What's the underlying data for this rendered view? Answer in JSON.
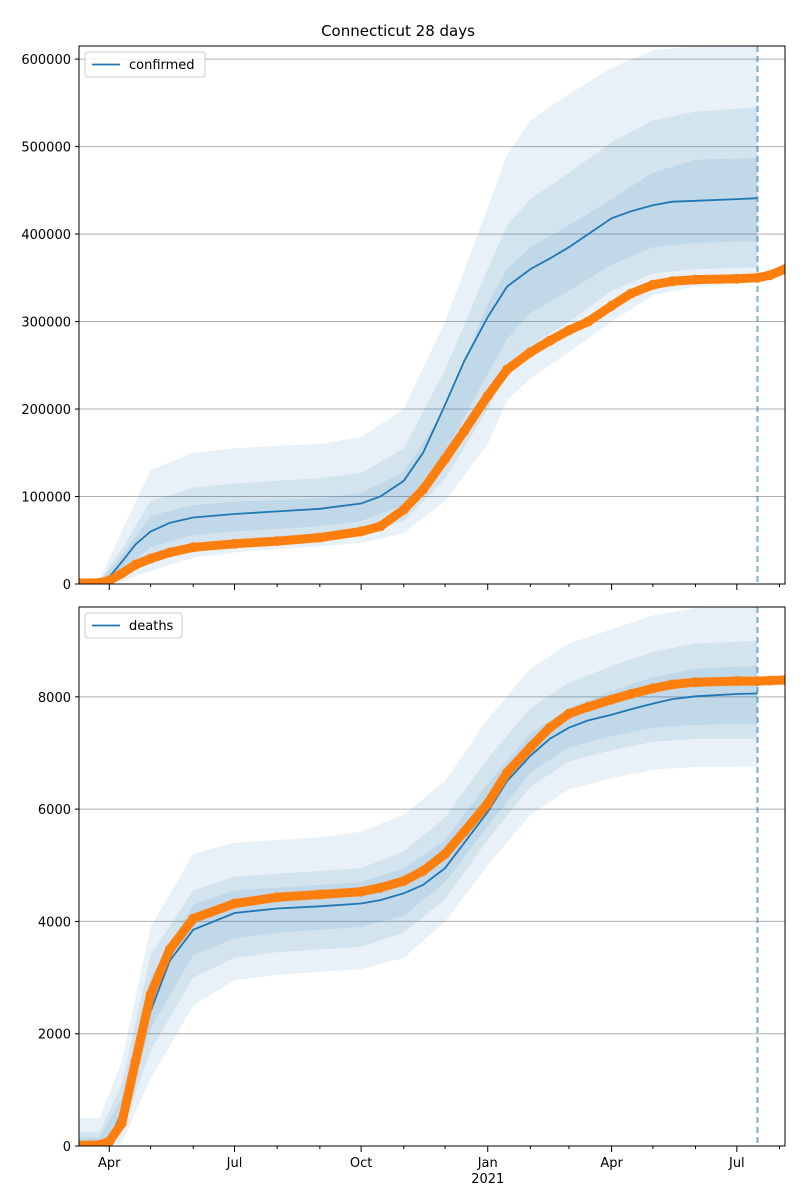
{
  "figure": {
    "title": "Connecticut 28 days"
  },
  "colors": {
    "model": "#1f77b4",
    "observed": "#ff7f0e",
    "band": "#1f77b4",
    "grid": "#b0b0b0"
  },
  "x_ticks": {
    "major": [
      {
        "date": "2020-04-01",
        "label": "Apr"
      },
      {
        "date": "2020-07-01",
        "label": "Jul"
      },
      {
        "date": "2020-10-01",
        "label": "Oct"
      },
      {
        "date": "2021-01-01",
        "label": "Jan"
      },
      {
        "date": "2021-04-01",
        "label": "Apr"
      },
      {
        "date": "2021-07-01",
        "label": "Jul"
      }
    ],
    "year_label": {
      "date": "2021-01-01",
      "label": "2021"
    }
  },
  "chart_data": [
    {
      "type": "line",
      "panel": "confirmed",
      "title": "Connecticut 28 days",
      "xlabel": "",
      "ylabel": "",
      "xlim": [
        "2020-03-10",
        "2021-08-05"
      ],
      "ylim": [
        0,
        615000
      ],
      "yticks": [
        0,
        100000,
        200000,
        300000,
        400000,
        500000,
        600000
      ],
      "grid": "y-major",
      "legend": {
        "placement": "top-left",
        "entries": [
          "confirmed"
        ]
      },
      "forecast_marker_date": "2021-07-16",
      "series": [
        {
          "name": "confirmed",
          "style": "line",
          "x": [
            "2020-03-10",
            "2020-03-25",
            "2020-04-01",
            "2020-04-10",
            "2020-04-20",
            "2020-05-01",
            "2020-05-15",
            "2020-06-01",
            "2020-07-01",
            "2020-08-01",
            "2020-09-01",
            "2020-10-01",
            "2020-10-15",
            "2020-11-01",
            "2020-11-15",
            "2020-12-01",
            "2020-12-15",
            "2021-01-01",
            "2021-01-15",
            "2021-02-01",
            "2021-02-15",
            "2021-03-01",
            "2021-03-15",
            "2021-04-01",
            "2021-04-15",
            "2021-05-01",
            "2021-05-15",
            "2021-06-01",
            "2021-07-01",
            "2021-07-16"
          ],
          "y": [
            1000,
            1500,
            8000,
            25000,
            45000,
            60000,
            70000,
            76000,
            80000,
            83000,
            86000,
            92000,
            100000,
            118000,
            150000,
            205000,
            255000,
            305000,
            340000,
            360000,
            372000,
            385000,
            400000,
            418000,
            426000,
            433000,
            437000,
            438000,
            440000,
            441000
          ]
        },
        {
          "name": "",
          "style": "markers",
          "x": [
            "2020-03-10",
            "2020-03-25",
            "2020-04-01",
            "2020-04-10",
            "2020-04-20",
            "2020-05-01",
            "2020-05-15",
            "2020-06-01",
            "2020-07-01",
            "2020-08-01",
            "2020-09-01",
            "2020-10-01",
            "2020-10-15",
            "2020-11-01",
            "2020-11-15",
            "2020-12-01",
            "2020-12-15",
            "2021-01-01",
            "2021-01-15",
            "2021-02-01",
            "2021-02-15",
            "2021-03-01",
            "2021-03-15",
            "2021-04-01",
            "2021-04-15",
            "2021-05-01",
            "2021-05-15",
            "2021-06-01",
            "2021-07-01",
            "2021-07-16",
            "2021-07-25",
            "2021-08-05"
          ],
          "y": [
            1000,
            1500,
            4000,
            12000,
            22000,
            29000,
            36000,
            42000,
            46000,
            49000,
            53000,
            60000,
            66000,
            85000,
            108000,
            143000,
            175000,
            215000,
            245000,
            265000,
            278000,
            290000,
            300000,
            318000,
            332000,
            342000,
            346000,
            348000,
            349000,
            350000,
            353000,
            360000
          ]
        }
      ],
      "bands": [
        {
          "level": "outer",
          "x": [
            "2020-03-10",
            "2020-03-25",
            "2020-04-10",
            "2020-05-01",
            "2020-06-01",
            "2020-07-01",
            "2020-08-01",
            "2020-09-01",
            "2020-10-01",
            "2020-11-01",
            "2020-12-01",
            "2021-01-01",
            "2021-01-15",
            "2021-02-01",
            "2021-03-01",
            "2021-04-01",
            "2021-05-01",
            "2021-06-01",
            "2021-07-16"
          ],
          "lower": [
            0,
            0,
            3000,
            15000,
            30000,
            36000,
            40000,
            43000,
            47000,
            58000,
            95000,
            160000,
            210000,
            235000,
            265000,
            300000,
            330000,
            340000,
            345000
          ],
          "upper": [
            3000,
            5000,
            60000,
            130000,
            150000,
            155000,
            158000,
            160000,
            168000,
            200000,
            300000,
            430000,
            490000,
            530000,
            560000,
            590000,
            610000,
            615000,
            615000
          ]
        },
        {
          "level": "middle",
          "x": [
            "2020-03-10",
            "2020-03-25",
            "2020-04-10",
            "2020-05-01",
            "2020-06-01",
            "2020-07-01",
            "2020-08-01",
            "2020-09-01",
            "2020-10-01",
            "2020-11-01",
            "2020-12-01",
            "2021-01-01",
            "2021-01-15",
            "2021-02-01",
            "2021-03-01",
            "2021-04-01",
            "2021-05-01",
            "2021-06-01",
            "2021-07-16"
          ],
          "lower": [
            0,
            0,
            8000,
            28000,
            42000,
            47000,
            50000,
            53000,
            58000,
            72000,
            120000,
            200000,
            245000,
            272000,
            300000,
            335000,
            355000,
            360000,
            362000
          ],
          "upper": [
            2000,
            3500,
            40000,
            95000,
            110000,
            115000,
            118000,
            121000,
            127000,
            155000,
            245000,
            360000,
            410000,
            440000,
            470000,
            505000,
            530000,
            540000,
            545000
          ]
        },
        {
          "level": "inner",
          "x": [
            "2020-03-10",
            "2020-03-25",
            "2020-04-10",
            "2020-05-01",
            "2020-06-01",
            "2020-07-01",
            "2020-08-01",
            "2020-09-01",
            "2020-10-01",
            "2020-11-01",
            "2020-12-01",
            "2021-01-01",
            "2021-01-15",
            "2021-02-01",
            "2021-03-01",
            "2021-04-01",
            "2021-05-01",
            "2021-06-01",
            "2021-07-16"
          ],
          "lower": [
            0,
            0,
            15000,
            42000,
            56000,
            60000,
            63000,
            66000,
            72000,
            90000,
            150000,
            240000,
            280000,
            310000,
            335000,
            365000,
            385000,
            390000,
            392000
          ],
          "upper": [
            1500,
            2500,
            32000,
            78000,
            90000,
            94000,
            96000,
            98000,
            104000,
            128000,
            200000,
            320000,
            360000,
            385000,
            410000,
            440000,
            470000,
            485000,
            487000
          ]
        }
      ]
    },
    {
      "type": "line",
      "panel": "deaths",
      "xlabel": "",
      "ylabel": "",
      "xlim": [
        "2020-03-10",
        "2021-08-05"
      ],
      "ylim": [
        0,
        9600
      ],
      "yticks": [
        0,
        2000,
        4000,
        6000,
        8000
      ],
      "grid": "y-major",
      "legend": {
        "placement": "top-left",
        "entries": [
          "deaths"
        ]
      },
      "forecast_marker_date": "2021-07-16",
      "series": [
        {
          "name": "deaths",
          "style": "line",
          "x": [
            "2020-03-10",
            "2020-03-25",
            "2020-04-01",
            "2020-04-10",
            "2020-04-20",
            "2020-05-01",
            "2020-05-15",
            "2020-06-01",
            "2020-07-01",
            "2020-08-01",
            "2020-09-01",
            "2020-10-01",
            "2020-10-15",
            "2020-11-01",
            "2020-11-15",
            "2020-12-01",
            "2020-12-15",
            "2021-01-01",
            "2021-01-15",
            "2021-02-01",
            "2021-02-15",
            "2021-03-01",
            "2021-03-15",
            "2021-04-01",
            "2021-04-15",
            "2021-05-01",
            "2021-05-15",
            "2021-06-01",
            "2021-07-01",
            "2021-07-16"
          ],
          "y": [
            10,
            20,
            100,
            600,
            1400,
            2400,
            3300,
            3850,
            4150,
            4230,
            4270,
            4320,
            4380,
            4500,
            4650,
            4950,
            5400,
            5950,
            6500,
            6950,
            7250,
            7450,
            7580,
            7680,
            7780,
            7880,
            7960,
            8010,
            8050,
            8060
          ]
        },
        {
          "name": "",
          "style": "markers",
          "x": [
            "2020-03-10",
            "2020-03-25",
            "2020-04-01",
            "2020-04-10",
            "2020-04-20",
            "2020-05-01",
            "2020-05-15",
            "2020-06-01",
            "2020-07-01",
            "2020-08-01",
            "2020-09-01",
            "2020-10-01",
            "2020-10-15",
            "2020-11-01",
            "2020-11-15",
            "2020-12-01",
            "2020-12-15",
            "2021-01-01",
            "2021-01-15",
            "2021-02-01",
            "2021-02-15",
            "2021-03-01",
            "2021-03-15",
            "2021-04-01",
            "2021-04-15",
            "2021-05-01",
            "2021-05-15",
            "2021-06-01",
            "2021-07-01",
            "2021-07-16",
            "2021-07-25",
            "2021-08-05"
          ],
          "y": [
            10,
            20,
            80,
            400,
            1500,
            2700,
            3500,
            4050,
            4320,
            4430,
            4480,
            4530,
            4600,
            4720,
            4900,
            5200,
            5600,
            6100,
            6650,
            7100,
            7450,
            7700,
            7820,
            7950,
            8050,
            8150,
            8220,
            8260,
            8280,
            8280,
            8290,
            8300
          ]
        }
      ],
      "bands": [
        {
          "level": "outer",
          "x": [
            "2020-03-10",
            "2020-03-25",
            "2020-04-10",
            "2020-05-01",
            "2020-06-01",
            "2020-07-01",
            "2020-08-01",
            "2020-09-01",
            "2020-10-01",
            "2020-11-01",
            "2020-12-01",
            "2021-01-01",
            "2021-02-01",
            "2021-03-01",
            "2021-04-01",
            "2021-05-01",
            "2021-06-01",
            "2021-07-16"
          ],
          "lower": [
            0,
            0,
            50,
            1200,
            2500,
            2950,
            3050,
            3100,
            3150,
            3350,
            4000,
            5000,
            5900,
            6350,
            6550,
            6700,
            6750,
            6760
          ],
          "upper": [
            500,
            500,
            1500,
            3900,
            5200,
            5400,
            5450,
            5500,
            5600,
            5900,
            6500,
            7600,
            8500,
            8950,
            9200,
            9450,
            9580,
            9600
          ]
        },
        {
          "level": "middle",
          "x": [
            "2020-03-10",
            "2020-03-25",
            "2020-04-10",
            "2020-05-01",
            "2020-06-01",
            "2020-07-01",
            "2020-08-01",
            "2020-09-01",
            "2020-10-01",
            "2020-11-01",
            "2020-12-01",
            "2021-01-01",
            "2021-02-01",
            "2021-03-01",
            "2021-04-01",
            "2021-05-01",
            "2021-06-01",
            "2021-07-16"
          ],
          "lower": [
            0,
            0,
            250,
            1700,
            3000,
            3350,
            3450,
            3500,
            3550,
            3800,
            4400,
            5450,
            6400,
            6850,
            7050,
            7200,
            7250,
            7250
          ],
          "upper": [
            250,
            250,
            1100,
            3400,
            4550,
            4800,
            4850,
            4900,
            4950,
            5250,
            5850,
            6900,
            7800,
            8250,
            8550,
            8800,
            8950,
            9000
          ]
        },
        {
          "level": "inner",
          "x": [
            "2020-03-10",
            "2020-03-25",
            "2020-04-10",
            "2020-05-01",
            "2020-06-01",
            "2020-07-01",
            "2020-08-01",
            "2020-09-01",
            "2020-10-01",
            "2020-11-01",
            "2020-12-01",
            "2021-01-01",
            "2021-02-01",
            "2021-03-01",
            "2021-04-01",
            "2021-05-01",
            "2021-06-01",
            "2021-07-16"
          ],
          "lower": [
            0,
            0,
            450,
            2100,
            3400,
            3700,
            3800,
            3850,
            3900,
            4100,
            4700,
            5700,
            6650,
            7100,
            7300,
            7450,
            7500,
            7520
          ],
          "upper": [
            150,
            150,
            850,
            3000,
            4300,
            4550,
            4600,
            4650,
            4700,
            4950,
            5450,
            6450,
            7350,
            7800,
            8100,
            8350,
            8500,
            8550
          ]
        }
      ]
    }
  ]
}
